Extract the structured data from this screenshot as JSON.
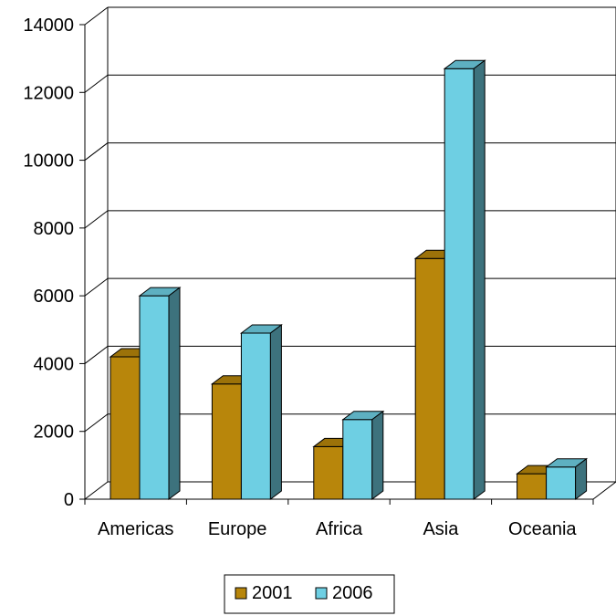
{
  "chart_data": {
    "type": "bar",
    "three_d": true,
    "categories": [
      "Americas",
      "Europe",
      "Africa",
      "Asia",
      "Oceania"
    ],
    "series": [
      {
        "name": "2001",
        "values": [
          4200,
          3400,
          1550,
          7100,
          750
        ],
        "color": "#B8860B"
      },
      {
        "name": "2006",
        "values": [
          6000,
          4900,
          2350,
          12700,
          950
        ],
        "color": "#6ECFE3"
      }
    ],
    "yticks": [
      0,
      2000,
      4000,
      6000,
      8000,
      10000,
      12000,
      14000
    ],
    "ylim": [
      0,
      14000
    ],
    "grid": true,
    "legend_position": "bottom",
    "title": "",
    "xlabel": "",
    "ylabel": ""
  }
}
